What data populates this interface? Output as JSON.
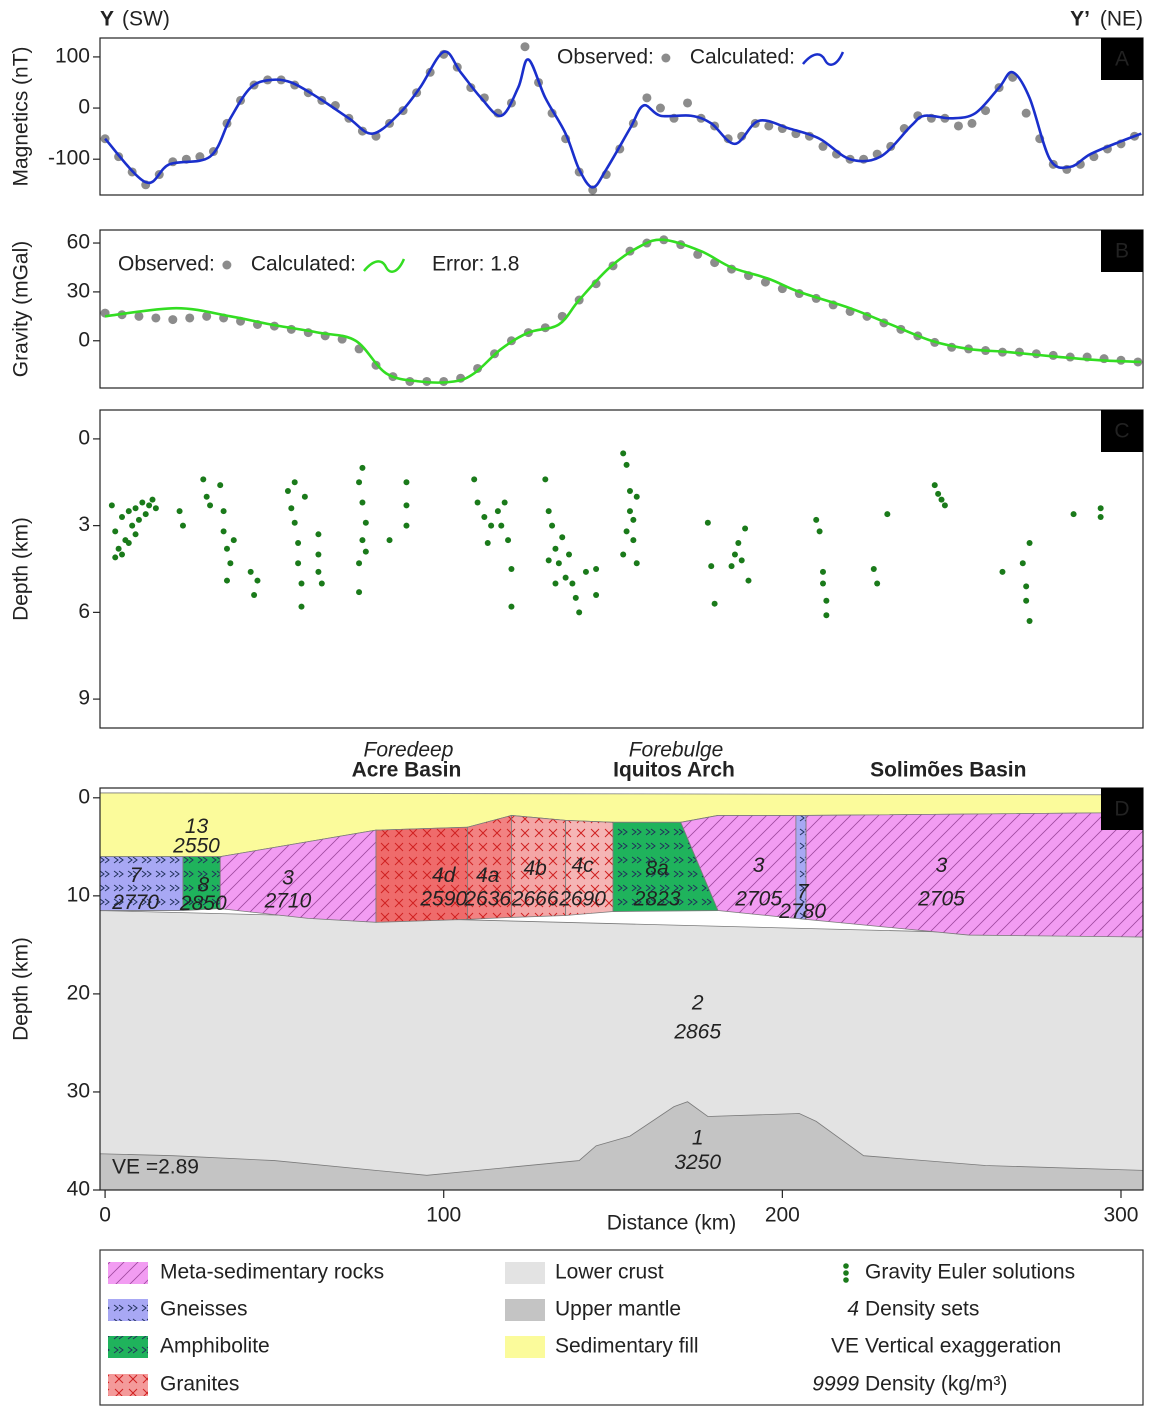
{
  "header": {
    "left_bold": "Y",
    "left": "(SW)",
    "right_bold": "Y’",
    "right": "(NE)"
  },
  "chart_data": [
    {
      "type": "line",
      "panel": "A",
      "ylabel": "Magnetics (nT)",
      "xlim": [
        -1.5,
        306.5
      ],
      "ylim": [
        -170,
        137
      ],
      "yticks": [
        -100,
        0,
        100
      ],
      "series": [
        {
          "name": "Observed:",
          "style": "points",
          "color": "#8c8c8c",
          "x": [
            0,
            4,
            8,
            12,
            16,
            20,
            24,
            28,
            32,
            36,
            40,
            44,
            48,
            52,
            56,
            60,
            64,
            68,
            72,
            76,
            80,
            84,
            88,
            92,
            96,
            100,
            104,
            108,
            112,
            116,
            120,
            124,
            128,
            132,
            136,
            140,
            144,
            148,
            152,
            156,
            160,
            164,
            168,
            172,
            176,
            180,
            184,
            188,
            192,
            196,
            200,
            204,
            208,
            212,
            216,
            220,
            224,
            228,
            232,
            236,
            240,
            244,
            248,
            252,
            256,
            260,
            264,
            268,
            272,
            276,
            280,
            284,
            288,
            292,
            296,
            300,
            304
          ],
          "values": [
            -60,
            -95,
            -125,
            -150,
            -130,
            -105,
            -100,
            -95,
            -85,
            -30,
            15,
            45,
            55,
            55,
            45,
            30,
            15,
            5,
            -20,
            -45,
            -55,
            -30,
            -5,
            30,
            70,
            105,
            80,
            40,
            20,
            -10,
            10,
            120,
            50,
            -10,
            -60,
            -125,
            -160,
            -130,
            -80,
            -30,
            20,
            0,
            -20,
            10,
            -20,
            -35,
            -60,
            -55,
            -30,
            -35,
            -40,
            -50,
            -55,
            -75,
            -90,
            -100,
            -100,
            -90,
            -75,
            -40,
            -15,
            -20,
            -20,
            -35,
            -30,
            -5,
            40,
            60,
            -10,
            -60,
            -110,
            -120,
            -110,
            -95,
            -80,
            -70,
            -55
          ]
        },
        {
          "name": "Calculated:",
          "style": "line",
          "color": "#1a2fcc",
          "x": [
            0,
            12,
            19,
            31,
            37,
            43,
            49,
            55,
            63,
            72,
            79,
            87,
            93,
            100,
            105,
            111,
            117,
            122,
            125,
            130,
            136,
            140,
            144,
            148,
            155,
            159,
            164,
            173,
            179,
            186,
            193,
            202,
            211,
            220,
            229,
            238,
            242,
            250,
            257,
            264,
            268,
            273,
            279,
            285,
            291,
            300,
            306
          ],
          "values": [
            -60,
            -145,
            -110,
            -95,
            -20,
            40,
            55,
            50,
            20,
            -20,
            -50,
            -10,
            40,
            110,
            70,
            20,
            -15,
            40,
            95,
            20,
            -50,
            -120,
            -155,
            -120,
            -40,
            5,
            -15,
            -15,
            -30,
            -70,
            -25,
            -40,
            -60,
            -100,
            -95,
            -35,
            -15,
            -20,
            -10,
            40,
            70,
            20,
            -100,
            -115,
            -90,
            -65,
            -50
          ]
        }
      ]
    },
    {
      "type": "line",
      "panel": "B",
      "ylabel": "Gravity (mGal)",
      "annotation": "Error: 1.8",
      "xlim": [
        -1.5,
        306.5
      ],
      "ylim": [
        -29,
        68
      ],
      "yticks": [
        0,
        30,
        60
      ],
      "series": [
        {
          "name": "Observed:",
          "style": "points",
          "color": "#8c8c8c",
          "x": [
            0,
            5,
            10,
            15,
            20,
            25,
            30,
            35,
            40,
            45,
            50,
            55,
            60,
            65,
            70,
            75,
            80,
            85,
            90,
            95,
            100,
            105,
            110,
            115,
            120,
            125,
            130,
            135,
            140,
            145,
            150,
            155,
            160,
            165,
            170,
            175,
            180,
            185,
            190,
            195,
            200,
            205,
            210,
            215,
            220,
            225,
            230,
            235,
            240,
            245,
            250,
            255,
            260,
            265,
            270,
            275,
            280,
            285,
            290,
            295,
            300,
            305
          ],
          "values": [
            17,
            16,
            15,
            14,
            13,
            14,
            15,
            14,
            12,
            10,
            9,
            7,
            5,
            3,
            1,
            -5,
            -15,
            -22,
            -25,
            -25,
            -25,
            -23,
            -17,
            -8,
            0,
            5,
            8,
            15,
            25,
            35,
            46,
            55,
            60,
            62,
            59,
            53,
            48,
            44,
            40,
            36,
            32,
            29,
            26,
            22,
            18,
            15,
            11,
            7,
            3,
            -1,
            -4,
            -5,
            -6,
            -7,
            -7,
            -8,
            -9,
            -10,
            -10,
            -11,
            -12,
            -13
          ]
        },
        {
          "name": "Calculated:",
          "style": "line",
          "color": "#33dd22",
          "x": [
            0,
            21,
            37,
            49,
            63,
            74,
            83,
            93,
            103,
            109,
            117,
            125,
            134,
            140,
            149,
            158,
            165,
            176,
            185,
            196,
            205,
            220,
            232,
            244,
            255,
            267,
            282,
            294,
            306
          ],
          "values": [
            15,
            20,
            15,
            10,
            5,
            0,
            -20,
            -25,
            -25,
            -20,
            -5,
            5,
            10,
            25,
            45,
            58,
            62,
            55,
            45,
            38,
            30,
            20,
            10,
            0,
            -5,
            -7,
            -10,
            -12,
            -13
          ]
        }
      ]
    },
    {
      "type": "scatter",
      "panel": "C",
      "ylabel": "Depth (km)",
      "xlim": [
        -1.5,
        306.5
      ],
      "ylim": [
        10,
        -1
      ],
      "yticks": [
        0,
        3,
        6,
        9
      ],
      "color": "#1a7a1a",
      "x": [
        2,
        3,
        4,
        5,
        6,
        7,
        8,
        9,
        10,
        11,
        12,
        13,
        14,
        15,
        3,
        5,
        7,
        9,
        22,
        23,
        29,
        30,
        31,
        34,
        35,
        35,
        36,
        37,
        36,
        38,
        43,
        44,
        45,
        54,
        55,
        56,
        57,
        57,
        58,
        58,
        59,
        56,
        63,
        63,
        63,
        64,
        75,
        76,
        76,
        77,
        76,
        75,
        75,
        77,
        84,
        89,
        89,
        89,
        109,
        110,
        112,
        114,
        116,
        118,
        119,
        120,
        120,
        113,
        117,
        130,
        131,
        132,
        133,
        134,
        135,
        136,
        137,
        138,
        139,
        140,
        131,
        133,
        142,
        145,
        145,
        153,
        154,
        155,
        155,
        154,
        156,
        157,
        153,
        156,
        157,
        178,
        179,
        180,
        186,
        187,
        188,
        189,
        190,
        185,
        210,
        211,
        212,
        213,
        213,
        212,
        227,
        228,
        231,
        245,
        246,
        247,
        248,
        265,
        271,
        272,
        272,
        273,
        273,
        286,
        294,
        294
      ],
      "values": [
        2.3,
        3.2,
        3.8,
        2.7,
        3.5,
        2.5,
        3.0,
        2.4,
        2.8,
        2.2,
        2.6,
        2.3,
        2.1,
        2.4,
        4.1,
        4.0,
        3.6,
        3.3,
        2.5,
        3.0,
        1.4,
        2.0,
        2.3,
        1.6,
        2.5,
        3.2,
        3.8,
        4.3,
        4.9,
        3.5,
        4.6,
        5.4,
        4.9,
        1.8,
        2.4,
        2.9,
        3.6,
        4.3,
        5.0,
        5.8,
        2.0,
        1.5,
        3.3,
        4.0,
        4.6,
        5.0,
        1.5,
        1.0,
        2.2,
        2.9,
        3.5,
        4.3,
        5.3,
        3.9,
        3.5,
        1.5,
        2.3,
        3.0,
        1.4,
        2.2,
        2.7,
        3.0,
        2.5,
        2.2,
        3.5,
        4.5,
        5.8,
        3.6,
        3.0,
        1.4,
        2.5,
        3.0,
        3.8,
        4.3,
        3.4,
        4.8,
        4.0,
        5.0,
        5.5,
        6.0,
        4.2,
        5.0,
        4.6,
        4.5,
        5.4,
        0.5,
        0.9,
        1.8,
        2.5,
        3.2,
        3.5,
        4.3,
        4.0,
        2.8,
        2.0,
        2.9,
        4.4,
        5.7,
        4.0,
        3.6,
        4.2,
        3.1,
        4.9,
        4.4,
        2.8,
        3.2,
        5.0,
        5.6,
        6.1,
        4.6,
        4.5,
        5.0,
        2.6,
        1.6,
        1.9,
        2.1,
        2.3,
        4.6,
        4.3,
        5.1,
        5.6,
        6.3,
        3.6,
        2.6,
        2.4,
        2.7
      ]
    },
    {
      "type": "section",
      "panel": "D",
      "ylabel": "Depth (km)",
      "xlabel": "Distance (km)",
      "annotation": "VE =2.89",
      "xlim": [
        -1.5,
        306.5
      ],
      "ylim": [
        40,
        -1
      ],
      "yticks": [
        0,
        10,
        20,
        30,
        40
      ],
      "xticks": [
        0,
        100,
        200,
        300
      ],
      "regions": [
        {
          "sub": "Foredeep",
          "name": "Acre Basin"
        },
        {
          "sub": "Forebulge",
          "name": "Iquitos Arch"
        },
        {
          "name": "Solimões Basin"
        }
      ],
      "bodies": [
        {
          "label": "2",
          "density": 2865,
          "color": "#e3e3e3",
          "pattern": "none",
          "x": [
            -1.5,
            306.5,
            306.5,
            -1.5
          ],
          "depth": [
            11.5,
            14.2,
            40,
            40
          ]
        },
        {
          "label": "1",
          "density": 3250,
          "color": "#c4c4c4",
          "pattern": "none",
          "x": [
            -1.5,
            20,
            50,
            95,
            140,
            145,
            155,
            168,
            172,
            178,
            205,
            210,
            224,
            260,
            306.5,
            306.5,
            -1.5
          ],
          "depth": [
            36.3,
            36.5,
            37,
            38.5,
            37,
            35.5,
            34.5,
            31.5,
            31,
            32.5,
            32.2,
            33,
            36.5,
            37.5,
            38,
            40,
            40
          ]
        },
        {
          "label": "13",
          "density": 2550,
          "color": "#fbfb9b",
          "pattern": "none",
          "x": [
            -1.5,
            306.5,
            306.5,
            207,
            181,
            170,
            150,
            136,
            120,
            107,
            80,
            34,
            -1.5
          ],
          "depth": [
            -0.5,
            -0.3,
            1.5,
            1.8,
            1.8,
            2.5,
            2.5,
            2.3,
            1.8,
            3,
            3.3,
            6,
            6
          ]
        },
        {
          "label": "7",
          "density": 2770,
          "color": "#a8a8f4",
          "pattern": "chevron",
          "x": [
            -1.5,
            23,
            23,
            -1.5
          ],
          "depth": [
            6,
            6,
            11.5,
            11.5
          ]
        },
        {
          "label": "8",
          "density": 2850,
          "color": "#1fb35c",
          "pattern": "chevron",
          "x": [
            23,
            34,
            34,
            23
          ],
          "depth": [
            6,
            6,
            11.3,
            11.5
          ]
        },
        {
          "label": "3",
          "density": 2710,
          "color": "#f29cf2",
          "pattern": "hatch",
          "x": [
            34,
            80,
            80,
            60,
            34
          ],
          "depth": [
            6,
            3.3,
            12.7,
            12.3,
            11.3
          ]
        },
        {
          "label": "4d",
          "density": 2590,
          "color": "#ef6b6b",
          "pattern": "cross",
          "x": [
            80,
            107,
            107,
            80
          ],
          "depth": [
            3.3,
            3,
            12.4,
            12.7
          ]
        },
        {
          "label": "4a",
          "density": 2636,
          "color": "#f28282",
          "pattern": "cross",
          "x": [
            107,
            120,
            120,
            107
          ],
          "depth": [
            3,
            1.8,
            12.2,
            12.4
          ]
        },
        {
          "label": "4b",
          "density": 2666,
          "color": "#f4a6a6",
          "pattern": "cross",
          "x": [
            120,
            136,
            136,
            120
          ],
          "depth": [
            1.8,
            2.3,
            12,
            12.2
          ]
        },
        {
          "label": "4c",
          "density": 2690,
          "color": "#f5b5b5",
          "pattern": "cross",
          "x": [
            136,
            150,
            150,
            136
          ],
          "depth": [
            2.3,
            2.5,
            11.6,
            12
          ]
        },
        {
          "label": "8a",
          "density": 2823,
          "color": "#1fb35c",
          "pattern": "chevron",
          "x": [
            150,
            170,
            181,
            150
          ],
          "depth": [
            2.5,
            2.5,
            11.5,
            11.6
          ]
        },
        {
          "label": "3",
          "density": 2705,
          "color": "#f29cf2",
          "pattern": "hatch",
          "x": [
            170,
            181,
            204,
            204,
            181
          ],
          "depth": [
            2.5,
            1.8,
            1.8,
            12.3,
            11.5
          ]
        },
        {
          "label": "7",
          "density": 2780,
          "color": "#a8a8f4",
          "pattern": "chevron",
          "x": [
            204,
            207,
            207,
            204
          ],
          "depth": [
            1.8,
            1.8,
            12.4,
            12.3
          ]
        },
        {
          "label": "3",
          "density": 2705,
          "color": "#f29cf2",
          "pattern": "hatch",
          "x": [
            207,
            306.5,
            306.5,
            255,
            207
          ],
          "depth": [
            1.8,
            1.5,
            14.2,
            14,
            12.4
          ]
        }
      ]
    }
  ],
  "legend": {
    "items": [
      {
        "label": "Meta-sedimentary rocks",
        "pattern": "hatch",
        "color": "#f29cf2"
      },
      {
        "label": "Gneisses",
        "pattern": "chevron",
        "color": "#a8a8f4"
      },
      {
        "label": "Amphibolite",
        "pattern": "chevron",
        "color": "#1fb35c"
      },
      {
        "label": "Granites",
        "pattern": "cross",
        "color": "#f49a9a"
      },
      {
        "label": "Lower crust",
        "pattern": "none",
        "color": "#e3e3e3"
      },
      {
        "label": "Upper mantle",
        "pattern": "none",
        "color": "#c4c4c4"
      },
      {
        "label": "Sedimentary fill",
        "pattern": "none",
        "color": "#fbfb9b"
      },
      {
        "label": "Gravity Euler solutions",
        "marker": "dots",
        "color": "#1a7a1a"
      },
      {
        "label": "Density sets",
        "symbol": "4"
      },
      {
        "label": "Vertical exaggeration",
        "symbol": "VE"
      },
      {
        "label": "Density (kg/m³)",
        "symbol": "9999"
      }
    ]
  }
}
